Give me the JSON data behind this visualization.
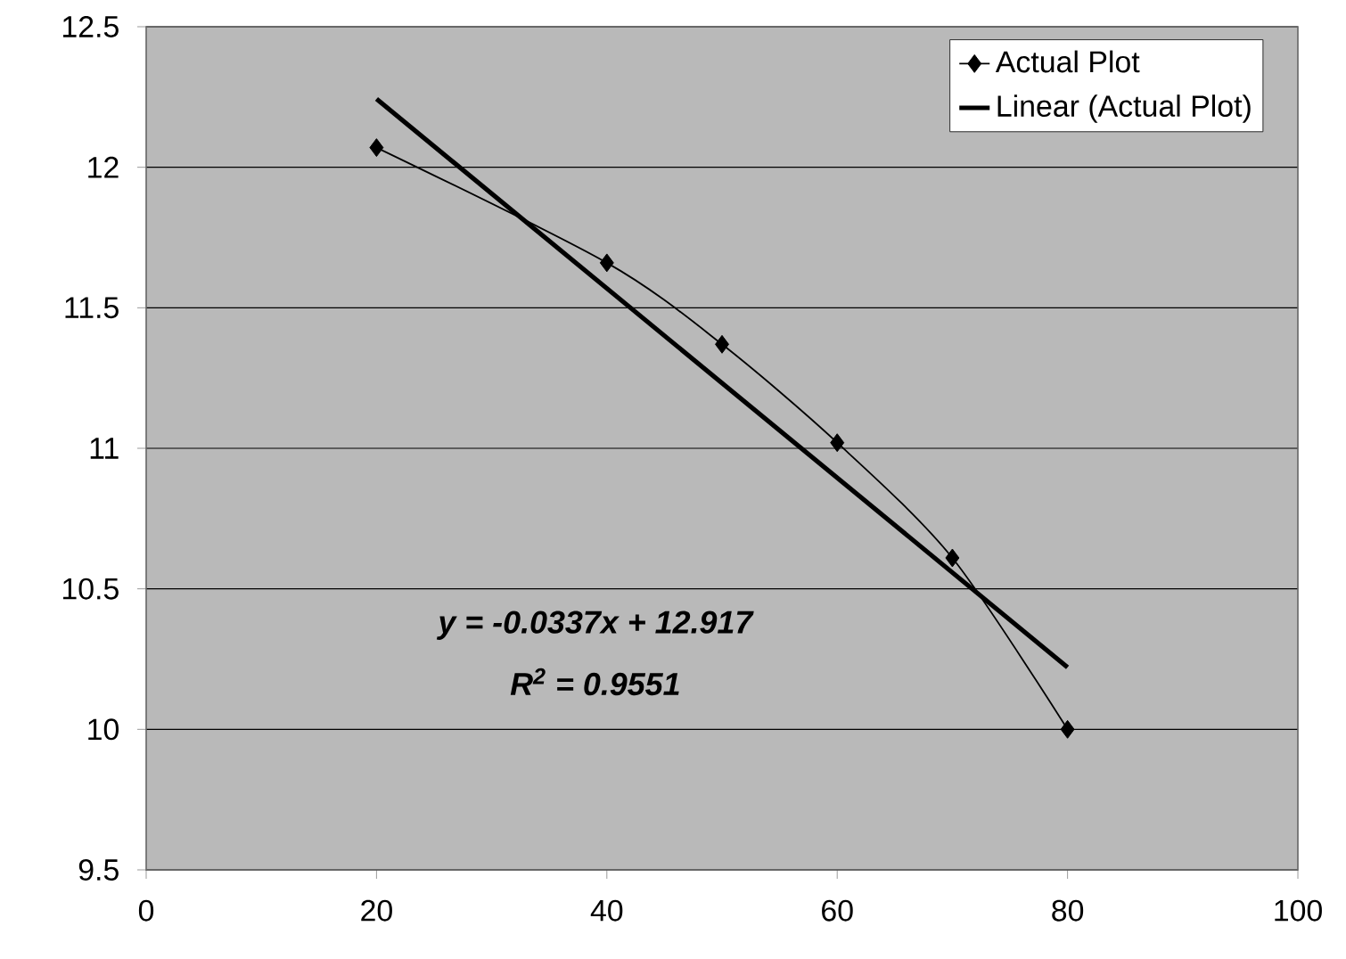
{
  "chart_data": {
    "type": "line",
    "x": [
      20,
      40,
      50,
      60,
      70,
      80
    ],
    "series": [
      {
        "name": "Actual Plot",
        "color": "#000000",
        "values": [
          12.07,
          11.66,
          11.37,
          11.02,
          10.61,
          10.0
        ],
        "marker": "diamond"
      },
      {
        "name": "Linear (Actual Plot)",
        "color": "#000000",
        "type": "line",
        "x": [
          20,
          80
        ],
        "values": [
          12.243,
          10.221
        ],
        "marker": "none"
      }
    ],
    "xlim": [
      0,
      100
    ],
    "xticks": [
      0,
      20,
      40,
      60,
      80,
      100
    ],
    "ylim": [
      9.5,
      12.5
    ],
    "yticks": [
      9.5,
      10,
      10.5,
      11,
      11.5,
      12,
      12.5
    ],
    "grid": "y",
    "legend": "top right",
    "line_style": "solid",
    "annotations": [
      "y = -0.0337x + 12.917",
      "R$^{2}$ = 0.9551"
    ]
  }
}
